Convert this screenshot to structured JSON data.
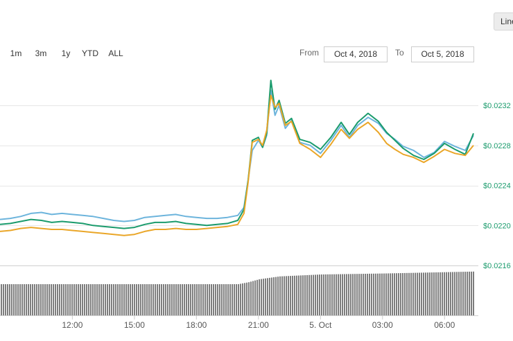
{
  "chart_type_button": "Line",
  "zoom_buttons": [
    "1m",
    "3m",
    "1y",
    "YTD",
    "ALL"
  ],
  "range": {
    "from_label": "From",
    "from_value": "Oct 4, 2018",
    "to_label": "To",
    "to_value": "Oct 5, 2018"
  },
  "colors": {
    "series_light_blue": "#6cb4dc",
    "series_green": "#1a9b6c",
    "series_orange": "#eaa628",
    "axis_label": "#1a9b6c",
    "volume": "#7d7d7d",
    "grid": "#e6e6e6"
  },
  "chart_data": {
    "type": "line",
    "title": "",
    "xlabel": "",
    "ylabel": "",
    "x_ticks": [
      {
        "label": "12:00",
        "hours": 12
      },
      {
        "label": "15:00",
        "hours": 15
      },
      {
        "label": "18:00",
        "hours": 18
      },
      {
        "label": "21:00",
        "hours": 21
      },
      {
        "label": "5. Oct",
        "hours": 24
      },
      {
        "label": "03:00",
        "hours": 27
      },
      {
        "label": "06:00",
        "hours": 30
      }
    ],
    "y_ticks": [
      "$0.0232",
      "$0.0228",
      "$0.0224",
      "$0.0220",
      "$0.0216"
    ],
    "y_tick_values": [
      0.0232,
      0.0228,
      0.0224,
      0.022,
      0.0216
    ],
    "ylim": [
      0.0216,
      0.02338
    ],
    "xlim_hours": [
      8.5,
      31.4
    ],
    "grid": true,
    "series": [
      {
        "color": "#6cb4dc",
        "points": [
          [
            8.5,
            0.02206
          ],
          [
            9.0,
            0.02207
          ],
          [
            9.5,
            0.02209
          ],
          [
            10.0,
            0.02212
          ],
          [
            10.5,
            0.02213
          ],
          [
            11.0,
            0.02211
          ],
          [
            11.5,
            0.02212
          ],
          [
            12.0,
            0.02211
          ],
          [
            12.5,
            0.0221
          ],
          [
            13.0,
            0.02209
          ],
          [
            13.5,
            0.02207
          ],
          [
            14.0,
            0.02205
          ],
          [
            14.5,
            0.02204
          ],
          [
            15.0,
            0.02205
          ],
          [
            15.5,
            0.02208
          ],
          [
            16.0,
            0.02209
          ],
          [
            16.5,
            0.0221
          ],
          [
            17.0,
            0.02211
          ],
          [
            17.5,
            0.02209
          ],
          [
            18.0,
            0.02208
          ],
          [
            18.5,
            0.02207
          ],
          [
            19.0,
            0.02207
          ],
          [
            19.5,
            0.02208
          ],
          [
            20.0,
            0.0221
          ],
          [
            20.3,
            0.02218
          ],
          [
            20.5,
            0.02245
          ],
          [
            20.7,
            0.02275
          ],
          [
            21.0,
            0.02285
          ],
          [
            21.2,
            0.02278
          ],
          [
            21.4,
            0.0229
          ],
          [
            21.6,
            0.02335
          ],
          [
            21.8,
            0.0231
          ],
          [
            22.0,
            0.0232
          ],
          [
            22.3,
            0.02297
          ],
          [
            22.6,
            0.02305
          ],
          [
            23.0,
            0.02283
          ],
          [
            23.5,
            0.0228
          ],
          [
            24.0,
            0.02272
          ],
          [
            24.5,
            0.02285
          ],
          [
            25.0,
            0.023
          ],
          [
            25.4,
            0.02288
          ],
          [
            25.8,
            0.023
          ],
          [
            26.3,
            0.02308
          ],
          [
            26.8,
            0.02302
          ],
          [
            27.2,
            0.02292
          ],
          [
            27.6,
            0.02286
          ],
          [
            28.0,
            0.02279
          ],
          [
            28.5,
            0.02275
          ],
          [
            29.0,
            0.02268
          ],
          [
            29.5,
            0.02273
          ],
          [
            30.0,
            0.02284
          ],
          [
            30.5,
            0.02279
          ],
          [
            31.0,
            0.02275
          ],
          [
            31.4,
            0.0229
          ]
        ]
      },
      {
        "color": "#1a9b6c",
        "points": [
          [
            8.5,
            0.02201
          ],
          [
            9.0,
            0.02202
          ],
          [
            9.5,
            0.02204
          ],
          [
            10.0,
            0.02206
          ],
          [
            10.5,
            0.02205
          ],
          [
            11.0,
            0.02203
          ],
          [
            11.5,
            0.02204
          ],
          [
            12.0,
            0.02203
          ],
          [
            12.5,
            0.02202
          ],
          [
            13.0,
            0.022
          ],
          [
            13.5,
            0.02199
          ],
          [
            14.0,
            0.02198
          ],
          [
            14.5,
            0.02197
          ],
          [
            15.0,
            0.02198
          ],
          [
            15.5,
            0.02201
          ],
          [
            16.0,
            0.02203
          ],
          [
            16.5,
            0.02203
          ],
          [
            17.0,
            0.02204
          ],
          [
            17.5,
            0.02202
          ],
          [
            18.0,
            0.02201
          ],
          [
            18.5,
            0.022
          ],
          [
            19.0,
            0.02201
          ],
          [
            19.5,
            0.02202
          ],
          [
            20.0,
            0.02205
          ],
          [
            20.3,
            0.02216
          ],
          [
            20.5,
            0.02245
          ],
          [
            20.7,
            0.02285
          ],
          [
            21.0,
            0.02288
          ],
          [
            21.2,
            0.02278
          ],
          [
            21.4,
            0.02292
          ],
          [
            21.6,
            0.02345
          ],
          [
            21.8,
            0.02316
          ],
          [
            22.0,
            0.02325
          ],
          [
            22.3,
            0.02302
          ],
          [
            22.6,
            0.02307
          ],
          [
            23.0,
            0.02286
          ],
          [
            23.5,
            0.02283
          ],
          [
            24.0,
            0.02276
          ],
          [
            24.5,
            0.02288
          ],
          [
            25.0,
            0.02303
          ],
          [
            25.4,
            0.02291
          ],
          [
            25.8,
            0.02303
          ],
          [
            26.3,
            0.02312
          ],
          [
            26.8,
            0.02304
          ],
          [
            27.2,
            0.02293
          ],
          [
            27.6,
            0.02285
          ],
          [
            28.0,
            0.02277
          ],
          [
            28.5,
            0.0227
          ],
          [
            29.0,
            0.02266
          ],
          [
            29.5,
            0.02272
          ],
          [
            30.0,
            0.02282
          ],
          [
            30.5,
            0.02276
          ],
          [
            31.0,
            0.02271
          ],
          [
            31.4,
            0.02292
          ]
        ]
      },
      {
        "color": "#eaa628",
        "points": [
          [
            8.5,
            0.02194
          ],
          [
            9.0,
            0.02195
          ],
          [
            9.5,
            0.02197
          ],
          [
            10.0,
            0.02198
          ],
          [
            10.5,
            0.02197
          ],
          [
            11.0,
            0.02196
          ],
          [
            11.5,
            0.02196
          ],
          [
            12.0,
            0.02195
          ],
          [
            12.5,
            0.02194
          ],
          [
            13.0,
            0.02193
          ],
          [
            13.5,
            0.02192
          ],
          [
            14.0,
            0.02191
          ],
          [
            14.5,
            0.0219
          ],
          [
            15.0,
            0.02191
          ],
          [
            15.5,
            0.02194
          ],
          [
            16.0,
            0.02196
          ],
          [
            16.5,
            0.02196
          ],
          [
            17.0,
            0.02197
          ],
          [
            17.5,
            0.02196
          ],
          [
            18.0,
            0.02196
          ],
          [
            18.5,
            0.02197
          ],
          [
            19.0,
            0.02198
          ],
          [
            19.5,
            0.02199
          ],
          [
            20.0,
            0.02201
          ],
          [
            20.3,
            0.02212
          ],
          [
            20.5,
            0.02243
          ],
          [
            20.7,
            0.02283
          ],
          [
            21.0,
            0.02286
          ],
          [
            21.2,
            0.0228
          ],
          [
            21.4,
            0.02295
          ],
          [
            21.6,
            0.0233
          ],
          [
            21.8,
            0.02318
          ],
          [
            22.0,
            0.02322
          ],
          [
            22.3,
            0.023
          ],
          [
            22.6,
            0.02304
          ],
          [
            23.0,
            0.02282
          ],
          [
            23.5,
            0.02276
          ],
          [
            24.0,
            0.02268
          ],
          [
            24.5,
            0.02281
          ],
          [
            25.0,
            0.02296
          ],
          [
            25.4,
            0.02287
          ],
          [
            25.8,
            0.02296
          ],
          [
            26.3,
            0.02303
          ],
          [
            26.8,
            0.02293
          ],
          [
            27.2,
            0.02282
          ],
          [
            27.6,
            0.02276
          ],
          [
            28.0,
            0.02271
          ],
          [
            28.5,
            0.02268
          ],
          [
            29.0,
            0.02263
          ],
          [
            29.5,
            0.02269
          ],
          [
            30.0,
            0.02276
          ],
          [
            30.5,
            0.02272
          ],
          [
            31.0,
            0.0227
          ],
          [
            31.4,
            0.0228
          ]
        ]
      }
    ],
    "volume": {
      "relative_levels": [
        [
          8.5,
          0.0
        ],
        [
          20.0,
          0.0
        ],
        [
          20.5,
          0.04
        ],
        [
          21.0,
          0.1
        ],
        [
          22.0,
          0.16
        ],
        [
          24.0,
          0.2
        ],
        [
          27.0,
          0.22
        ],
        [
          31.4,
          0.26
        ]
      ]
    }
  }
}
